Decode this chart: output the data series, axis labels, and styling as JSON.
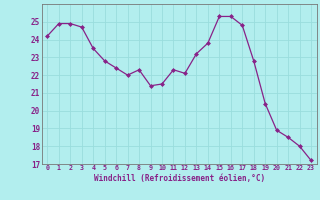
{
  "x": [
    0,
    1,
    2,
    3,
    4,
    5,
    6,
    7,
    8,
    9,
    10,
    11,
    12,
    13,
    14,
    15,
    16,
    17,
    18,
    19,
    20,
    21,
    22,
    23
  ],
  "y": [
    24.2,
    24.9,
    24.9,
    24.7,
    23.5,
    22.8,
    22.4,
    22.0,
    22.3,
    21.4,
    21.5,
    22.3,
    22.1,
    23.2,
    23.8,
    25.3,
    25.3,
    24.8,
    22.8,
    20.4,
    18.9,
    18.5,
    18.0,
    17.2
  ],
  "xlim": [
    -0.5,
    23.5
  ],
  "ylim": [
    17,
    26
  ],
  "yticks": [
    17,
    18,
    19,
    20,
    21,
    22,
    23,
    24,
    25
  ],
  "xtick_labels": [
    "0",
    "1",
    "2",
    "3",
    "4",
    "5",
    "6",
    "7",
    "8",
    "9",
    "10",
    "11",
    "12",
    "13",
    "14",
    "15",
    "16",
    "17",
    "18",
    "19",
    "20",
    "21",
    "22",
    "23"
  ],
  "xlabel": "Windchill (Refroidissement éolien,°C)",
  "line_color": "#882288",
  "marker_color": "#882288",
  "bg_color": "#b2eeee",
  "grid_color": "#99dddd",
  "spine_color": "#777777"
}
